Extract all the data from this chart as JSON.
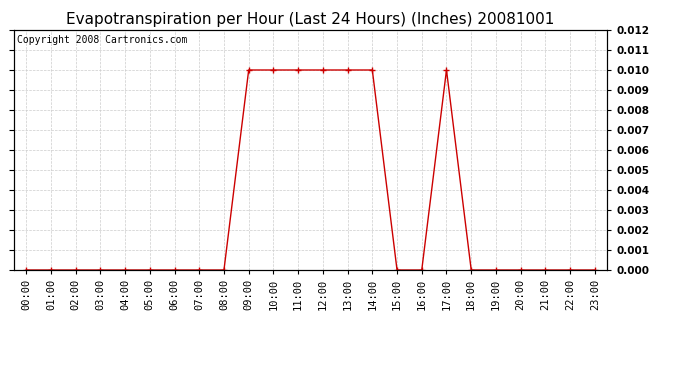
{
  "title": "Evapotranspiration per Hour (Last 24 Hours) (Inches) 20081001",
  "copyright": "Copyright 2008 Cartronics.com",
  "hours": [
    0,
    1,
    2,
    3,
    4,
    5,
    6,
    7,
    8,
    9,
    10,
    11,
    12,
    13,
    14,
    15,
    16,
    17,
    18,
    19,
    20,
    21,
    22,
    23
  ],
  "values": [
    0.0,
    0.0,
    0.0,
    0.0,
    0.0,
    0.0,
    0.0,
    0.0,
    0.0,
    0.01,
    0.01,
    0.01,
    0.01,
    0.01,
    0.01,
    0.0,
    0.0,
    0.01,
    0.0,
    0.0,
    0.0,
    0.0,
    0.0,
    0.0
  ],
  "xlabels": [
    "00:00",
    "01:00",
    "02:00",
    "03:00",
    "04:00",
    "05:00",
    "06:00",
    "07:00",
    "08:00",
    "09:00",
    "10:00",
    "11:00",
    "12:00",
    "13:00",
    "14:00",
    "15:00",
    "16:00",
    "17:00",
    "18:00",
    "19:00",
    "20:00",
    "21:00",
    "22:00",
    "23:00"
  ],
  "ylim": [
    0.0,
    0.012
  ],
  "yticks": [
    0.0,
    0.001,
    0.002,
    0.003,
    0.004,
    0.005,
    0.006,
    0.007,
    0.008,
    0.009,
    0.01,
    0.011,
    0.012
  ],
  "line_color": "#cc0000",
  "marker": "+",
  "marker_size": 4,
  "grid_color": "#cccccc",
  "bg_color": "#ffffff",
  "title_fontsize": 11,
  "copyright_fontsize": 7,
  "tick_fontsize": 7.5
}
